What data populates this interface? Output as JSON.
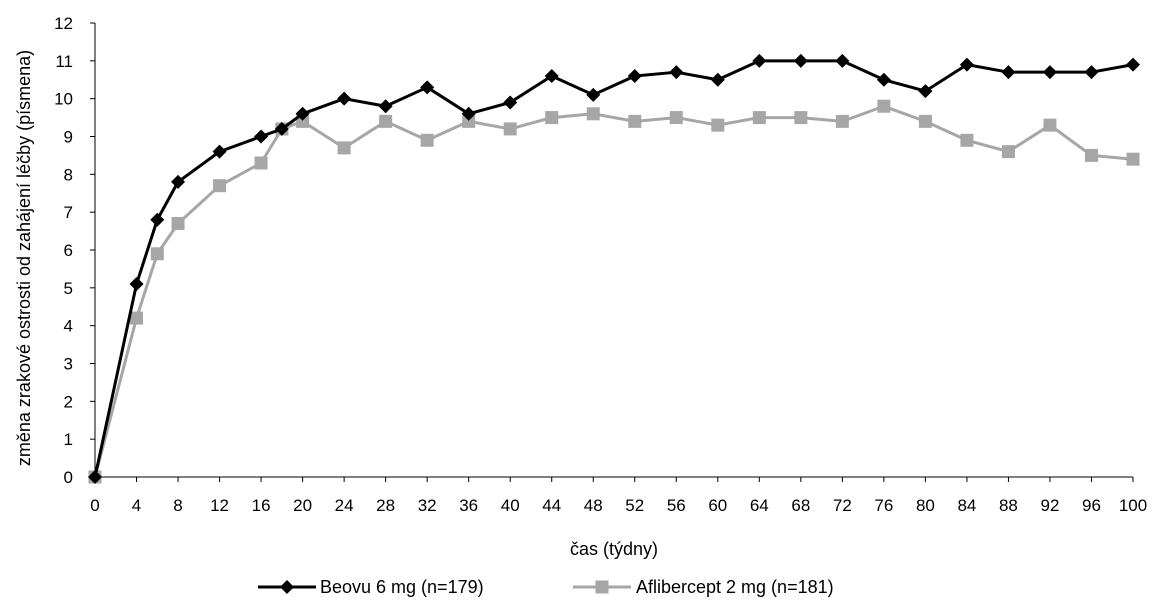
{
  "chart_data": {
    "type": "line",
    "title": "",
    "xlabel": "čas (týdny)",
    "ylabel": "změna zrakové ostrosti od zahájení léčby (písmena)",
    "ylim": [
      0,
      12
    ],
    "yticks": [
      0,
      1,
      2,
      3,
      4,
      5,
      6,
      7,
      8,
      9,
      10,
      11,
      12
    ],
    "xticks": [
      0,
      4,
      8,
      12,
      16,
      20,
      24,
      28,
      32,
      36,
      40,
      44,
      48,
      52,
      56,
      60,
      64,
      68,
      72,
      76,
      80,
      84,
      88,
      92,
      96,
      100
    ],
    "grid": false,
    "legend_position": "bottom",
    "series": [
      {
        "name": "Beovu 6 mg (n=179)",
        "color": "#000000",
        "marker": "diamond",
        "x": [
          0,
          4,
          6,
          8,
          12,
          16,
          18,
          20,
          24,
          28,
          32,
          36,
          40,
          44,
          48,
          52,
          56,
          60,
          64,
          68,
          72,
          76,
          80,
          84,
          88,
          92,
          96,
          100
        ],
        "y": [
          0,
          5.1,
          6.8,
          7.8,
          8.6,
          9.0,
          9.2,
          9.6,
          10.0,
          9.8,
          10.3,
          9.6,
          9.9,
          10.6,
          10.1,
          10.6,
          10.7,
          10.5,
          11.0,
          11.0,
          11.0,
          10.5,
          10.2,
          10.9,
          10.7,
          10.7,
          10.7,
          10.9
        ]
      },
      {
        "name": "Aflibercept 2 mg (n=181)",
        "color": "#a6a6a6",
        "marker": "square",
        "x": [
          0,
          4,
          6,
          8,
          12,
          16,
          18,
          20,
          24,
          28,
          32,
          36,
          40,
          44,
          48,
          52,
          56,
          60,
          64,
          68,
          72,
          76,
          80,
          84,
          88,
          92,
          96,
          100
        ],
        "y": [
          0,
          4.2,
          5.9,
          6.7,
          7.7,
          8.3,
          9.2,
          9.4,
          8.7,
          9.4,
          8.9,
          9.4,
          9.2,
          9.5,
          9.6,
          9.4,
          9.5,
          9.3,
          9.5,
          9.5,
          9.4,
          9.8,
          9.4,
          8.9,
          8.6,
          9.3,
          8.5,
          8.4
        ]
      }
    ]
  }
}
